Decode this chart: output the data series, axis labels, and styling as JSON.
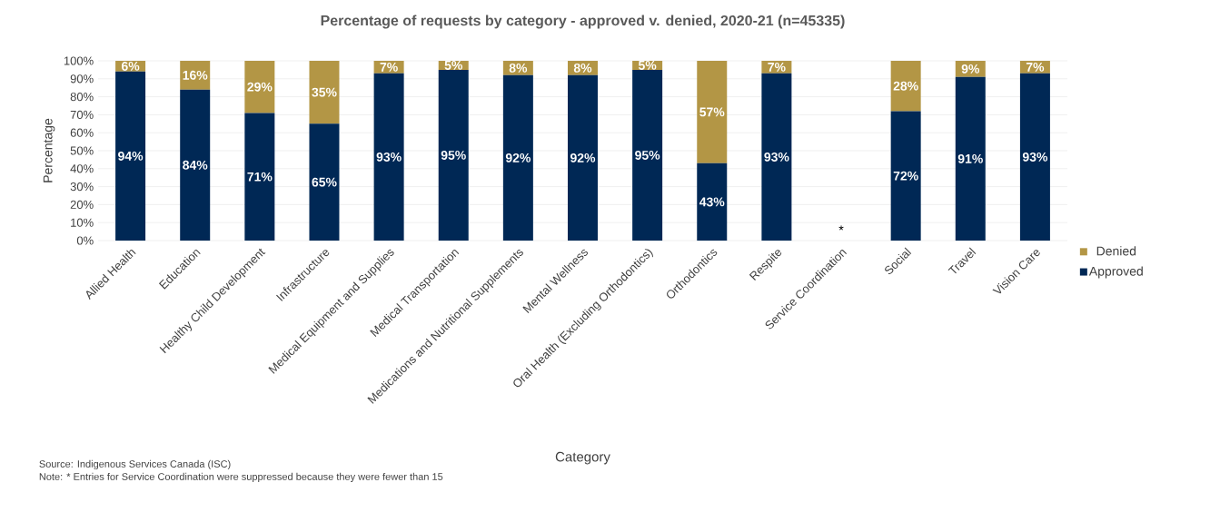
{
  "chart_data": {
    "type": "bar",
    "title": "Percentage of requests by category - approved v. denied, 2020-21 (n=45335)",
    "xlabel": "Category",
    "ylabel": "Percentage",
    "categories": [
      "Allied Health",
      "Education",
      "Healthy Child Development",
      "Infrastructure",
      "Medical Equipment and Supplies",
      "Medical Transportation",
      "Medications and Nutritional Supplements",
      "Mental Wellness",
      "Oral Health (Excluding Orthodontics)",
      "Orthodontics",
      "Respite",
      "Service Coordination",
      "Social",
      "Travel",
      "Vision Care"
    ],
    "series": [
      {
        "name": "Approved",
        "color": "#002855",
        "values": [
          94,
          84,
          71,
          65,
          93,
          95,
          92,
          92,
          95,
          43,
          93,
          null,
          72,
          91,
          93
        ],
        "value_labels": [
          "94%",
          "84%",
          "71%",
          "65%",
          "93%",
          "95%",
          "92%",
          "92%",
          "95%",
          "43%",
          "93%",
          null,
          "72%",
          "91%",
          "93%"
        ]
      },
      {
        "name": "Denied",
        "color": "#b39645",
        "values": [
          6,
          16,
          29,
          35,
          7,
          5,
          8,
          8,
          5,
          57,
          7,
          null,
          28,
          9,
          7
        ],
        "value_labels": [
          "6%",
          "16%",
          "29%",
          "35%",
          "7%",
          "5%",
          "8%",
          "8%",
          "5%",
          "57%",
          "7%",
          null,
          "28%",
          "9%",
          "7%"
        ]
      }
    ],
    "stacked": true,
    "ylim": [
      0,
      100
    ],
    "yticks": [
      {
        "value": 0,
        "label": "0%"
      },
      {
        "value": 10,
        "label": "10%"
      },
      {
        "value": 20,
        "label": "20%"
      },
      {
        "value": 30,
        "label": "30%"
      },
      {
        "value": 40,
        "label": "40%"
      },
      {
        "value": 50,
        "label": "50%"
      },
      {
        "value": 60,
        "label": "60%"
      },
      {
        "value": 70,
        "label": "70%"
      },
      {
        "value": 80,
        "label": "80%"
      },
      {
        "value": 90,
        "label": "90%"
      },
      {
        "value": 100,
        "label": "100%"
      }
    ],
    "grid": "y",
    "legend": "right",
    "annotations": [
      "*",
      "Source: Indigenous Services Canada (ISC)",
      "Note: * Entries for Service Coordination were suppressed because they were fewer than 15"
    ]
  }
}
